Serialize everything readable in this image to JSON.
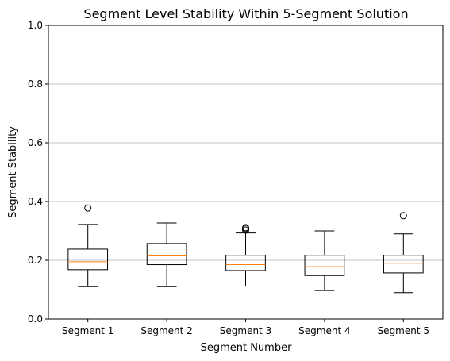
{
  "chart_data": {
    "type": "box",
    "title": "Segment Level Stability Within 5-Segment Solution",
    "xlabel": "Segment Number",
    "ylabel": "Segment Stability",
    "ylim": [
      0,
      1
    ],
    "yticks": [
      0.0,
      0.2,
      0.4,
      0.6,
      0.8,
      1.0
    ],
    "ytick_labels": [
      "0.0",
      "0.2",
      "0.4",
      "0.6",
      "0.8",
      "1.0"
    ],
    "grid": "y",
    "categories": [
      "Segment 1",
      "Segment 2",
      "Segment 3",
      "Segment 4",
      "Segment 5"
    ],
    "boxes": [
      {
        "whisker_low": 0.11,
        "q1": 0.168,
        "median": 0.195,
        "q3": 0.238,
        "whisker_high": 0.322,
        "outliers": [
          0.378
        ]
      },
      {
        "whisker_low": 0.11,
        "q1": 0.185,
        "median": 0.215,
        "q3": 0.257,
        "whisker_high": 0.327,
        "outliers": []
      },
      {
        "whisker_low": 0.112,
        "q1": 0.165,
        "median": 0.185,
        "q3": 0.217,
        "whisker_high": 0.293,
        "outliers": [
          0.303,
          0.308,
          0.311
        ]
      },
      {
        "whisker_low": 0.097,
        "q1": 0.148,
        "median": 0.178,
        "q3": 0.217,
        "whisker_high": 0.3,
        "outliers": []
      },
      {
        "whisker_low": 0.09,
        "q1": 0.157,
        "median": 0.19,
        "q3": 0.217,
        "whisker_high": 0.29,
        "outliers": [
          0.352
        ]
      }
    ],
    "colors": {
      "box": "#000000",
      "median": "#ff7f0e",
      "grid": "#b0b0b0"
    }
  }
}
